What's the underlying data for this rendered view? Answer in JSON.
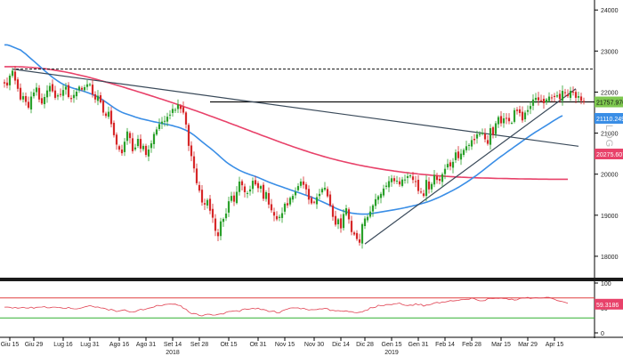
{
  "chart_data": [
    {
      "type": "candlestick",
      "ylim": [
        17500,
        24200
      ],
      "y_ticks": [
        18000,
        19000,
        20000,
        21000,
        22000,
        23000,
        24000
      ],
      "y_tick_labels": [
        "18000",
        "19000",
        "20000",
        "21000",
        "22000",
        "23000",
        "24000"
      ],
      "axis_side": "right",
      "log_label": "LOG",
      "x_ticks": [
        {
          "label": "Giu 15",
          "index": 2
        },
        {
          "label": "Giu 29",
          "index": 11
        },
        {
          "label": "Lug 16",
          "index": 22
        },
        {
          "label": "Lug 31",
          "index": 32
        },
        {
          "label": "Ago 16",
          "index": 43
        },
        {
          "label": "Ago 31",
          "index": 53
        },
        {
          "label": "Set 14",
          "index": 63
        },
        {
          "label": "Set 28",
          "index": 73
        },
        {
          "label": "Ott 15",
          "index": 84
        },
        {
          "label": "Ott 31",
          "index": 95
        },
        {
          "label": "Nov 15",
          "index": 105
        },
        {
          "label": "Nov 30",
          "index": 116
        },
        {
          "label": "Dic 14",
          "index": 126
        },
        {
          "label": "Dic 28",
          "index": 135
        },
        {
          "label": "Gen 15",
          "index": 145
        },
        {
          "label": "Gen 31",
          "index": 155
        },
        {
          "label": "Feb 14",
          "index": 165
        },
        {
          "label": "Feb 28",
          "index": 175
        },
        {
          "label": "Mar 15",
          "index": 186
        },
        {
          "label": "Mar 29",
          "index": 196
        },
        {
          "label": "Apr 15",
          "index": 206
        }
      ],
      "year_labels": [
        {
          "label": "2018",
          "index": 63
        },
        {
          "label": "2019",
          "index": 145
        }
      ],
      "closes": [
        22210,
        22160,
        22400,
        22520,
        22280,
        22080,
        21820,
        21900,
        21760,
        21620,
        21890,
        21990,
        22110,
        21820,
        21720,
        21880,
        22040,
        22150,
        22020,
        21860,
        21920,
        21950,
        22050,
        22130,
        21880,
        21830,
        21930,
        22010,
        22130,
        22060,
        22120,
        22190,
        22190,
        21940,
        21820,
        21910,
        21750,
        21500,
        21420,
        21520,
        21220,
        20950,
        20720,
        20600,
        20510,
        20790,
        21040,
        20880,
        20560,
        20650,
        20860,
        20620,
        20690,
        20470,
        20600,
        20750,
        20980,
        21090,
        21220,
        21280,
        21300,
        21400,
        21450,
        21590,
        21570,
        21700,
        21590,
        21500,
        21210,
        20690,
        20440,
        20140,
        19780,
        19600,
        19310,
        19260,
        19370,
        19110,
        18940,
        18620,
        18490,
        18850,
        18910,
        19040,
        19340,
        19470,
        19330,
        19570,
        19820,
        19730,
        19560,
        19540,
        19630,
        19840,
        19750,
        19660,
        19710,
        19400,
        19560,
        19260,
        19120,
        18990,
        18900,
        18960,
        19050,
        19280,
        19240,
        19420,
        19470,
        19570,
        19710,
        19820,
        19740,
        19630,
        19380,
        19290,
        19310,
        19440,
        19520,
        19640,
        19670,
        19460,
        19230,
        18960,
        18770,
        18900,
        18680,
        19030,
        19170,
        18900,
        18590,
        18530,
        18420,
        18330,
        18780,
        18920,
        18960,
        19090,
        19240,
        19390,
        19460,
        19520,
        19650,
        19720,
        19830,
        19900,
        19830,
        19840,
        19750,
        19870,
        19870,
        19950,
        19970,
        19860,
        19820,
        19590,
        19560,
        19470,
        19860,
        19630,
        19760,
        19980,
        19860,
        19840,
        20000,
        20130,
        20250,
        20190,
        20300,
        20530,
        20390,
        20500,
        20590,
        20680,
        20710,
        20830,
        20830,
        20970,
        20980,
        21010,
        20850,
        20740,
        21120,
        20960,
        21240,
        21390,
        21240,
        21360,
        21350,
        21290,
        21250,
        21560,
        21540,
        21490,
        21310,
        21500,
        21560,
        21660,
        21820,
        21860,
        21800,
        21800,
        21730,
        21820,
        21890,
        21870,
        21880,
        21920,
        21830,
        22030,
        21980,
        21900,
        22030,
        22000,
        21860,
        21900,
        21790,
        21760
      ],
      "ma_blue": {
        "values": [
          23150,
          23150,
          23131,
          23106,
          23078,
          23050,
          23026,
          22976,
          22924,
          22866,
          22810,
          22754,
          22697,
          22639,
          22581,
          22523,
          22467,
          22413,
          22360,
          22313,
          22267,
          22224,
          22189,
          22159,
          22133,
          22109,
          22088,
          22070,
          22052,
          22033,
          22013,
          21991,
          21967,
          21942,
          21913,
          21880,
          21842,
          21800,
          21756,
          21710,
          21665,
          21620,
          21578,
          21540,
          21507,
          21482,
          21460,
          21438,
          21416,
          21393,
          21372,
          21354,
          21337,
          21323,
          21308,
          21292,
          21278,
          21265,
          21251,
          21237,
          21224,
          21211,
          21197,
          21181,
          21163,
          21144,
          21123,
          21098,
          21069,
          21035,
          20995,
          20949,
          20899,
          20846,
          20792,
          20739,
          20687,
          20637,
          20585,
          20530,
          20472,
          20413,
          20355,
          20300,
          20251,
          20208,
          20168,
          20130,
          20095,
          20064,
          20037,
          20012,
          19988,
          19966,
          19944,
          19919,
          19892,
          19864,
          19835,
          19808,
          19782,
          19757,
          19734,
          19712,
          19689,
          19667,
          19644,
          19621,
          19598,
          19575,
          19553,
          19531,
          19508,
          19486,
          19462,
          19438,
          19412,
          19386,
          19358,
          19330,
          19300,
          19270,
          19238,
          19206,
          19174,
          19146,
          19122,
          19100,
          19081,
          19066,
          19053,
          19043,
          19035,
          19030,
          19027,
          19027,
          19030,
          19037,
          19046,
          19057,
          19068,
          19079,
          19090,
          19100,
          19110,
          19121,
          19133,
          19145,
          19157,
          19169,
          19183,
          19198,
          19213,
          19228,
          19244,
          19261,
          19278,
          19297,
          19317,
          19339,
          19363,
          19389,
          19416,
          19445,
          19476,
          19508,
          19541,
          19574,
          19608,
          19643,
          19680,
          19719,
          19759,
          19800,
          19843,
          19888,
          19934,
          19981,
          20030,
          20080,
          20132,
          20183,
          20235,
          20286,
          20336,
          20385,
          20433,
          20480,
          20527,
          20574,
          20621,
          20668,
          20714,
          20760,
          20806,
          20852,
          20898,
          20943,
          20986,
          21029,
          21070,
          21110,
          21150,
          21191,
          21232,
          21274,
          21314,
          21354,
          21392,
          21427
        ],
        "label": "21110.2496",
        "color": "#3a8ee6"
      },
      "ma_red": {
        "values": [
          22620,
          22620,
          22620,
          22620,
          22619,
          22617,
          22615,
          22612,
          22609,
          22605,
          22601,
          22596,
          22590,
          22584,
          22577,
          22570,
          22561,
          22552,
          22543,
          22533,
          22522,
          22511,
          22499,
          22486,
          22473,
          22460,
          22446,
          22431,
          22416,
          22401,
          22385,
          22369,
          22352,
          22335,
          22318,
          22300,
          22282,
          22264,
          22245,
          22227,
          22208,
          22189,
          22170,
          22150,
          22131,
          22111,
          22091,
          22071,
          22051,
          22031,
          22011,
          21991,
          21971,
          21950,
          21930,
          21909,
          21888,
          21867,
          21846,
          21825,
          21804,
          21782,
          21761,
          21739,
          21717,
          21695,
          21673,
          21651,
          21629,
          21606,
          21583,
          21560,
          21538,
          21514,
          21491,
          21468,
          21444,
          21421,
          21397,
          21373,
          21349,
          21325,
          21301,
          21277,
          21252,
          21228,
          21203,
          21179,
          21154,
          21130,
          21105,
          21080,
          21056,
          21031,
          21006,
          20982,
          20957,
          20933,
          20908,
          20884,
          20860,
          20836,
          20812,
          20788,
          20764,
          20741,
          20718,
          20695,
          20672,
          20650,
          20628,
          20606,
          20584,
          20563,
          20542,
          20521,
          20501,
          20481,
          20461,
          20442,
          20423,
          20405,
          20387,
          20370,
          20353,
          20337,
          20321,
          20305,
          20290,
          20275,
          20261,
          20247,
          20233,
          20220,
          20207,
          20194,
          20182,
          20170,
          20159,
          20147,
          20136,
          20126,
          20115,
          20105,
          20095,
          20086,
          20077,
          20067,
          20059,
          20050,
          20042,
          20034,
          20027,
          20019,
          20012,
          20005,
          19998,
          19992,
          19986,
          19980,
          19974,
          19969,
          19964,
          19958,
          19954,
          19949,
          19945,
          19941,
          19937,
          19933,
          19930,
          19927,
          19924,
          19921,
          19918,
          19916,
          19913,
          19911,
          19909,
          19907,
          19905,
          19904,
          19902,
          19900,
          19899,
          19897,
          19896,
          19894,
          19893,
          19891,
          19890,
          19889,
          19887,
          19886,
          19885,
          19884,
          19883,
          19882,
          19881,
          19880,
          19879,
          19879,
          19878,
          19878,
          19877,
          19877,
          19877,
          19877,
          19877,
          19877,
          19877,
          19877
        ],
        "label": "20275.6074",
        "color": "#e8426a"
      },
      "last_price_label": "21757.9707",
      "horizontal_lines": [
        {
          "value": 22560,
          "style": "dashed"
        },
        {
          "value": 21760,
          "style": "solid"
        }
      ],
      "trendlines": [
        {
          "from": {
            "index": 3,
            "value": 22560
          },
          "to": {
            "index": 215,
            "value": 20680
          },
          "description": "descending resistance"
        },
        {
          "from": {
            "index": 135,
            "value": 18300
          },
          "to": {
            "index": 214,
            "value": 22080
          },
          "description": "ascending support"
        }
      ],
      "up_color": "#2aa02a",
      "down_color": "#d62728"
    },
    {
      "type": "line",
      "name": "RSI",
      "ylim": [
        0,
        100
      ],
      "y_ticks": [
        0,
        50,
        100
      ],
      "y_tick_labels": [
        "0",
        "50",
        "100"
      ],
      "reference_lines": [
        {
          "value": 70,
          "color": "#e04040"
        },
        {
          "value": 30,
          "color": "#30b030"
        }
      ],
      "values": [
        51.6,
        51.8,
        51.3,
        49.7,
        51.1,
        49.4,
        50.1,
        51.3,
        49.8,
        49.7,
        51.8,
        49.2,
        51.2,
        51.6,
        51.8,
        52.6,
        50.2,
        50.4,
        51.6,
        51.6,
        50.9,
        50.6,
        49.3,
        49.0,
        51.2,
        48.9,
        48.3,
        48.1,
        49.0,
        50.2,
        52.0,
        53.2,
        54.9,
        53.3,
        51.5,
        52.0,
        50.0,
        49.7,
        48.3,
        45.6,
        47.1,
        45.4,
        42.7,
        44.0,
        45.1,
        46.2,
        43.8,
        41.8,
        41.9,
        42.5,
        45.4,
        47.3,
        46.1,
        47.6,
        49.4,
        50.5,
        51.7,
        55.1,
        54.8,
        54.7,
        56.8,
        57.4,
        57.9,
        57.5,
        57.6,
        55.4,
        54.6,
        49.1,
        47.5,
        42.2,
        38.5,
        38.9,
        38.1,
        34.8,
        34.0,
        36.1,
        37.5,
        37.1,
        35.5,
        35.7,
        37.1,
        38.3,
        37.8,
        41.3,
        42.8,
        43.2,
        44.0,
        44.4,
        42.6,
        46.6,
        48.2,
        47.0,
        48.1,
        49.3,
        48.0,
        49.6,
        46.6,
        47.0,
        45.5,
        42.6,
        43.3,
        44.0,
        40.1,
        40.1,
        44.2,
        46.3,
        47.6,
        49.9,
        50.2,
        50.0,
        50.1,
        48.1,
        49.4,
        47.3,
        45.8,
        46.6,
        46.5,
        46.7,
        48.2,
        47.8,
        49.1,
        48.6,
        44.8,
        45.4,
        44.1,
        44.7,
        43.8,
        43.2,
        44.3,
        42.5,
        42.6,
        40.9,
        40.3,
        41.5,
        41.9,
        44.9,
        45.6,
        50.7,
        50.4,
        51.3,
        55.6,
        54.5,
        54.4,
        57.0,
        56.8,
        56.6,
        58.2,
        58.8,
        59.8,
        57.0,
        55.3,
        54.8,
        55.9,
        55.0,
        58.5,
        56.0,
        57.5,
        53.5,
        55.9,
        55.9,
        57.7,
        60.0,
        61.3,
        59.8,
        62.0,
        61.8,
        63.1,
        64.8,
        64.0,
        64.6,
        65.2,
        66.6,
        66.7,
        67.4,
        67.4,
        69.8,
        68.5,
        66.0,
        64.3,
        64.2,
        64.8,
        68.5,
        69.2,
        68.5,
        69.4,
        69.0,
        69.6,
        68.7,
        68.8,
        66.6,
        67.8,
        65.8,
        66.2,
        69.0,
        70.0,
        69.8,
        71.2,
        68.9,
        69.8,
        70.5,
        70.0,
        69.9,
        70.4,
        71.5,
        71.0,
        69.3,
        67.5,
        64.9,
        63.8,
        62.7,
        61.2,
        59.2
      ],
      "color": "#e04050",
      "last_value_label": "59.3186"
    }
  ],
  "colors": {
    "axis_label_bg_last": "#7ec850",
    "axis_label_bg_blue": "#3a8ee6",
    "axis_label_bg_red": "#e8426a",
    "axis_label_bg_rsi": "#e8426a",
    "trendline": "#3a4a5a"
  }
}
